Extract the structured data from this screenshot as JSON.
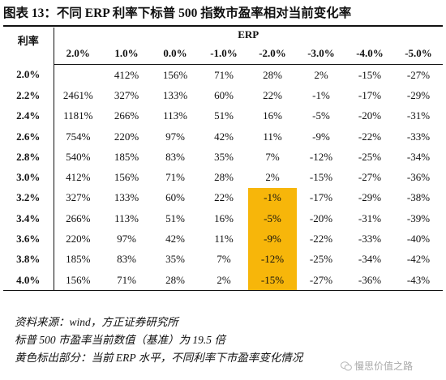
{
  "title": "图表 13：不同 ERP 利率下标普 500 指数市盈率相对当前变化率",
  "table": {
    "row_header": "利率",
    "group_header": "ERP",
    "columns": [
      "2.0%",
      "1.0%",
      "0.0%",
      "-1.0%",
      "-2.0%",
      "-3.0%",
      "-4.0%",
      "-5.0%"
    ],
    "highlight_column_index": 4,
    "highlight_color": "#f7b60a",
    "rows": [
      {
        "rate": "2.0%",
        "cells": [
          "",
          "412%",
          "156%",
          "71%",
          "28%",
          "2%",
          "-15%",
          "-27%"
        ]
      },
      {
        "rate": "2.2%",
        "cells": [
          "2461%",
          "327%",
          "133%",
          "60%",
          "22%",
          "-1%",
          "-17%",
          "-29%"
        ]
      },
      {
        "rate": "2.4%",
        "cells": [
          "1181%",
          "266%",
          "113%",
          "51%",
          "16%",
          "-5%",
          "-20%",
          "-31%"
        ]
      },
      {
        "rate": "2.6%",
        "cells": [
          "754%",
          "220%",
          "97%",
          "42%",
          "11%",
          "-9%",
          "-22%",
          "-33%"
        ]
      },
      {
        "rate": "2.8%",
        "cells": [
          "540%",
          "185%",
          "83%",
          "35%",
          "7%",
          "-12%",
          "-25%",
          "-34%"
        ]
      },
      {
        "rate": "3.0%",
        "cells": [
          "412%",
          "156%",
          "71%",
          "28%",
          "2%",
          "-15%",
          "-27%",
          "-36%"
        ]
      },
      {
        "rate": "3.2%",
        "cells": [
          "327%",
          "133%",
          "60%",
          "22%",
          "-1%",
          "-17%",
          "-29%",
          "-38%"
        ]
      },
      {
        "rate": "3.4%",
        "cells": [
          "266%",
          "113%",
          "51%",
          "16%",
          "-5%",
          "-20%",
          "-31%",
          "-39%"
        ]
      },
      {
        "rate": "3.6%",
        "cells": [
          "220%",
          "97%",
          "42%",
          "11%",
          "-9%",
          "-22%",
          "-33%",
          "-40%"
        ]
      },
      {
        "rate": "3.8%",
        "cells": [
          "185%",
          "83%",
          "35%",
          "7%",
          "-12%",
          "-25%",
          "-34%",
          "-42%"
        ]
      },
      {
        "rate": "4.0%",
        "cells": [
          "156%",
          "71%",
          "28%",
          "2%",
          "-15%",
          "-27%",
          "-36%",
          "-43%"
        ]
      }
    ]
  },
  "notes": [
    "资料来源：wind，方正证券研究所",
    "标普 500 市盈率当前数值（基准）为 19.5 倍",
    "黄色标出部分：当前 ERP 水平，不同利率下市盈率变化情况"
  ],
  "watermark": {
    "icon": "wechat-icon",
    "text": "慢思价值之路"
  }
}
